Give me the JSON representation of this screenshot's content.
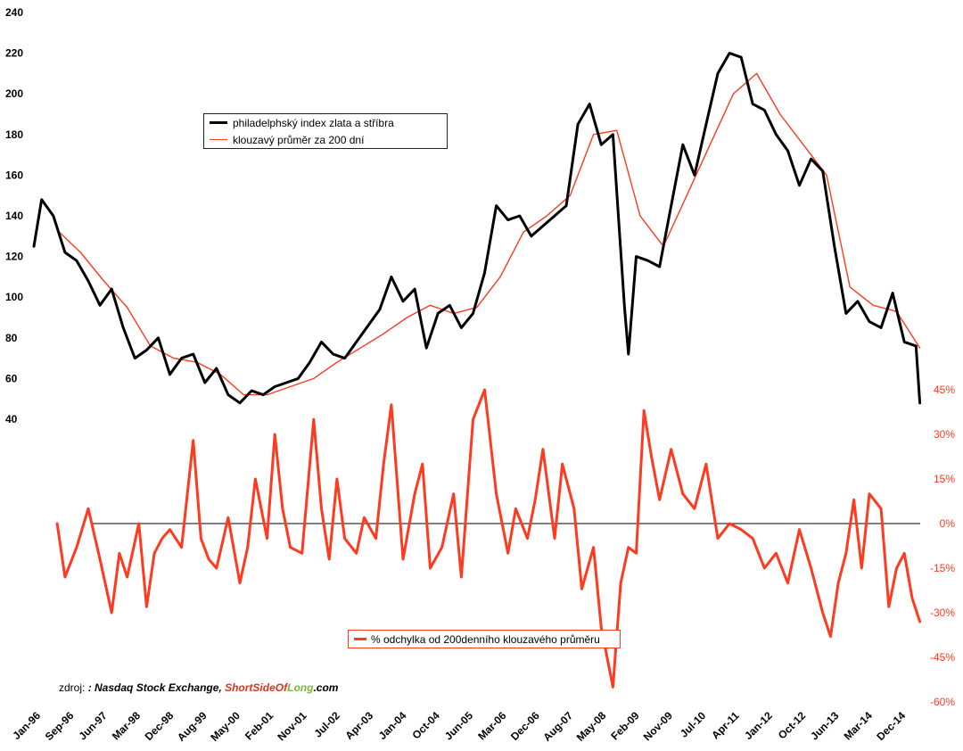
{
  "chart_data": [
    {
      "type": "line",
      "title": "",
      "xlabel": "",
      "ylabel": "",
      "ylim": [
        40,
        240
      ],
      "yticks": [
        "240",
        "220",
        "200",
        "180",
        "160",
        "140",
        "120",
        "100",
        "80",
        "60",
        "40"
      ],
      "x_tick_labels": [
        "Jan-96",
        "Sep-96",
        "Jun-97",
        "Mar-98",
        "Dec-98",
        "Aug-99",
        "May-00",
        "Feb-01",
        "Nov-01",
        "Jul-02",
        "Apr-03",
        "Jan-04",
        "Oct-04",
        "Jun-05",
        "Mar-06",
        "Dec-06",
        "Aug-07",
        "May-08",
        "Feb-09",
        "Nov-09",
        "Jul-10",
        "Apr-11",
        "Jan-12",
        "Oct-12",
        "Jun-13",
        "Mar-14",
        "Dec-14"
      ],
      "x_range": [
        "Jan-96",
        "Jan-15"
      ],
      "legend_position": "upper-left",
      "series": [
        {
          "name": "philadelphský index zlata a stříbra",
          "color": "#000000",
          "x": [
            "1996-01",
            "1996-03",
            "1996-06",
            "1996-09",
            "1996-12",
            "1997-03",
            "1997-06",
            "1997-09",
            "1997-12",
            "1998-03",
            "1998-06",
            "1998-09",
            "1998-12",
            "1999-03",
            "1999-06",
            "1999-09",
            "1999-12",
            "2000-03",
            "2000-06",
            "2000-09",
            "2000-12",
            "2001-03",
            "2001-06",
            "2001-09",
            "2001-12",
            "2002-03",
            "2002-06",
            "2002-09",
            "2002-12",
            "2003-03",
            "2003-06",
            "2003-09",
            "2003-12",
            "2004-03",
            "2004-06",
            "2004-09",
            "2004-12",
            "2005-03",
            "2005-06",
            "2005-09",
            "2005-12",
            "2006-03",
            "2006-06",
            "2006-09",
            "2006-12",
            "2007-03",
            "2007-06",
            "2007-09",
            "2007-12",
            "2008-03",
            "2008-06",
            "2008-09",
            "2008-10",
            "2008-12",
            "2009-03",
            "2009-06",
            "2009-09",
            "2009-12",
            "2010-03",
            "2010-06",
            "2010-09",
            "2010-12",
            "2011-03",
            "2011-06",
            "2011-09",
            "2011-12",
            "2012-03",
            "2012-06",
            "2012-09",
            "2012-12",
            "2013-03",
            "2013-06",
            "2013-09",
            "2013-12",
            "2014-03",
            "2014-06",
            "2014-09",
            "2014-12",
            "2015-01"
          ],
          "values": [
            125,
            148,
            140,
            122,
            118,
            108,
            96,
            104,
            85,
            70,
            74,
            80,
            62,
            70,
            72,
            58,
            65,
            52,
            48,
            54,
            52,
            56,
            58,
            60,
            68,
            78,
            72,
            70,
            78,
            86,
            94,
            110,
            98,
            104,
            75,
            92,
            96,
            85,
            92,
            112,
            145,
            138,
            140,
            130,
            135,
            140,
            145,
            185,
            195,
            175,
            180,
            95,
            72,
            120,
            118,
            115,
            145,
            175,
            160,
            185,
            210,
            220,
            218,
            195,
            192,
            180,
            172,
            155,
            168,
            162,
            125,
            92,
            98,
            88,
            85,
            102,
            78,
            76,
            48
          ]
        },
        {
          "name": "klouzavý průměr za 200 dní",
          "color": "#ff3a1f",
          "x": [
            "1996-07",
            "1997-01",
            "1997-07",
            "1998-01",
            "1998-07",
            "1999-01",
            "1999-07",
            "2000-01",
            "2000-07",
            "2001-01",
            "2001-07",
            "2002-01",
            "2002-07",
            "2003-01",
            "2003-07",
            "2004-01",
            "2004-07",
            "2005-01",
            "2005-07",
            "2006-01",
            "2006-07",
            "2007-01",
            "2007-07",
            "2008-01",
            "2008-07",
            "2009-01",
            "2009-07",
            "2010-01",
            "2010-07",
            "2011-01",
            "2011-07",
            "2012-01",
            "2012-07",
            "2013-01",
            "2013-07",
            "2014-01",
            "2014-07",
            "2015-01"
          ],
          "values": [
            133,
            122,
            108,
            95,
            76,
            70,
            68,
            62,
            52,
            52,
            56,
            60,
            68,
            75,
            82,
            90,
            96,
            92,
            95,
            110,
            132,
            140,
            150,
            180,
            182,
            140,
            125,
            150,
            175,
            200,
            210,
            190,
            175,
            160,
            105,
            96,
            93,
            75
          ]
        }
      ]
    },
    {
      "type": "line",
      "title": "",
      "ylim": [
        -60,
        45
      ],
      "yticks": [
        "45%",
        "30%",
        "15%",
        "0%",
        "-15%",
        "-30%",
        "-45%",
        "-60%"
      ],
      "reference_line": 0,
      "legend_position": "lower-left",
      "series": [
        {
          "name": "% odchylka od 200denního klouzavého průměru",
          "color": "#ff3a1f",
          "x": [
            "1996-07",
            "1996-09",
            "1996-12",
            "1997-03",
            "1997-06",
            "1997-09",
            "1997-11",
            "1998-01",
            "1998-04",
            "1998-06",
            "1998-08",
            "1998-10",
            "1998-12",
            "1999-03",
            "1999-06",
            "1999-08",
            "1999-10",
            "1999-12",
            "2000-03",
            "2000-06",
            "2000-08",
            "2000-10",
            "2001-01",
            "2001-03",
            "2001-05",
            "2001-07",
            "2001-10",
            "2002-01",
            "2002-03",
            "2002-05",
            "2002-07",
            "2002-09",
            "2002-12",
            "2003-02",
            "2003-05",
            "2003-07",
            "2003-09",
            "2003-12",
            "2004-03",
            "2004-05",
            "2004-07",
            "2004-10",
            "2005-01",
            "2005-03",
            "2005-06",
            "2005-09",
            "2005-12",
            "2006-03",
            "2006-05",
            "2006-08",
            "2006-10",
            "2006-12",
            "2007-03",
            "2007-05",
            "2007-08",
            "2007-10",
            "2008-01",
            "2008-03",
            "2008-06",
            "2008-08",
            "2008-10",
            "2008-12",
            "2009-02",
            "2009-04",
            "2009-06",
            "2009-09",
            "2009-12",
            "2010-03",
            "2010-06",
            "2010-09",
            "2010-12",
            "2011-03",
            "2011-06",
            "2011-09",
            "2011-12",
            "2012-03",
            "2012-06",
            "2012-09",
            "2012-12",
            "2013-02",
            "2013-04",
            "2013-06",
            "2013-08",
            "2013-10",
            "2013-12",
            "2014-03",
            "2014-05",
            "2014-07",
            "2014-09",
            "2014-11",
            "2015-01"
          ],
          "values": [
            0,
            -18,
            -8,
            5,
            -12,
            -30,
            -10,
            -18,
            0,
            -28,
            -10,
            -5,
            -2,
            -8,
            28,
            -5,
            -12,
            -15,
            2,
            -20,
            -8,
            15,
            -5,
            30,
            5,
            -8,
            -10,
            35,
            5,
            -12,
            15,
            -5,
            -10,
            2,
            -5,
            20,
            40,
            -12,
            10,
            20,
            -15,
            -8,
            10,
            -18,
            35,
            45,
            10,
            -10,
            5,
            -5,
            8,
            25,
            -5,
            20,
            5,
            -22,
            -8,
            -35,
            -55,
            -20,
            -8,
            -10,
            38,
            22,
            8,
            25,
            10,
            5,
            20,
            -5,
            0,
            -2,
            -5,
            -15,
            -10,
            -20,
            -2,
            -15,
            -30,
            -38,
            -20,
            -10,
            8,
            -15,
            10,
            5,
            -28,
            -15,
            -10,
            -25,
            -33
          ]
        }
      ]
    }
  ],
  "source": {
    "prefix": "zdroj:",
    "text1": ": Nasdaq Stock Exchange, ",
    "brand_red1": "Short",
    "brand_red2": "Side",
    "brand_red3": "Of",
    "brand_green": "Long",
    "brand_suffix": ".com"
  },
  "colors": {
    "index_line": "#000000",
    "moving_average": "#ff3a1f",
    "deviation_line": "#ff3a1f",
    "deviation_ticks": "#ff3a1f",
    "brand_red": "#e3321c",
    "brand_green": "#7cb53c"
  }
}
